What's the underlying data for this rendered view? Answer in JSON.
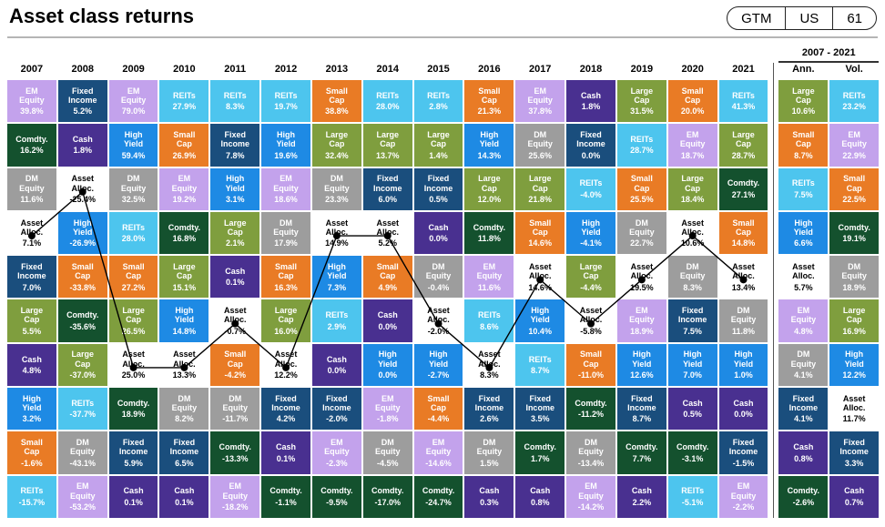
{
  "page": {
    "title": "Asset class returns"
  },
  "gtm_pill": {
    "items": [
      "GTM",
      "US",
      "61"
    ]
  },
  "asset_styles": {
    "Large Cap": {
      "bg": "#7f9e3e",
      "fg": "#ffffff"
    },
    "Small Cap": {
      "bg": "#e97b25",
      "fg": "#ffffff"
    },
    "EM Equity": {
      "bg": "#c3a2ec",
      "fg": "#ffffff"
    },
    "DM Equity": {
      "bg": "#9d9d9d",
      "fg": "#ffffff"
    },
    "REITs": {
      "bg": "#4dc5ee",
      "fg": "#ffffff"
    },
    "Fixed Income": {
      "bg": "#1a4e7d",
      "fg": "#ffffff"
    },
    "High Yield": {
      "bg": "#1e8ae4",
      "fg": "#ffffff"
    },
    "Cash": {
      "bg": "#493090",
      "fg": "#ffffff"
    },
    "Comdty.": {
      "bg": "#14512e",
      "fg": "#ffffff"
    },
    "Asset Alloc.": {
      "bg": "#ffffff",
      "fg": "#000000"
    }
  },
  "line_style": {
    "color": "#000000",
    "dot_radius": 4
  },
  "chart_data": {
    "type": "heatmap",
    "title": "Asset class returns",
    "period_label": "2007 - 2021",
    "columns": [
      "2007",
      "2008",
      "2009",
      "2010",
      "2011",
      "2012",
      "2013",
      "2014",
      "2015",
      "2016",
      "2017",
      "2018",
      "2019",
      "2020",
      "2021",
      "Ann.",
      "Vol."
    ],
    "asset_alloc_line_rows": [
      3,
      2,
      6,
      6,
      5,
      6,
      3,
      3,
      5,
      6,
      4,
      5,
      4,
      3,
      4
    ],
    "rows": [
      [
        {
          "asset": "EM Equity",
          "return": "39.8%"
        },
        {
          "asset": "Fixed Income",
          "return": "5.2%"
        },
        {
          "asset": "EM Equity",
          "return": "79.0%"
        },
        {
          "asset": "REITs",
          "return": "27.9%"
        },
        {
          "asset": "REITs",
          "return": "8.3%"
        },
        {
          "asset": "REITs",
          "return": "19.7%"
        },
        {
          "asset": "Small Cap",
          "return": "38.8%"
        },
        {
          "asset": "REITs",
          "return": "28.0%"
        },
        {
          "asset": "REITs",
          "return": "2.8%"
        },
        {
          "asset": "Small Cap",
          "return": "21.3%"
        },
        {
          "asset": "EM Equity",
          "return": "37.8%"
        },
        {
          "asset": "Cash",
          "return": "1.8%"
        },
        {
          "asset": "Large Cap",
          "return": "31.5%"
        },
        {
          "asset": "Small Cap",
          "return": "20.0%"
        },
        {
          "asset": "REITs",
          "return": "41.3%"
        },
        {
          "asset": "Large Cap",
          "return": "10.6%"
        },
        {
          "asset": "REITs",
          "return": "23.2%"
        }
      ],
      [
        {
          "asset": "Comdty.",
          "return": "16.2%"
        },
        {
          "asset": "Cash",
          "return": "1.8%"
        },
        {
          "asset": "High Yield",
          "return": "59.4%"
        },
        {
          "asset": "Small Cap",
          "return": "26.9%"
        },
        {
          "asset": "Fixed Income",
          "return": "7.8%"
        },
        {
          "asset": "High Yield",
          "return": "19.6%"
        },
        {
          "asset": "Large Cap",
          "return": "32.4%"
        },
        {
          "asset": "Large Cap",
          "return": "13.7%"
        },
        {
          "asset": "Large Cap",
          "return": "1.4%"
        },
        {
          "asset": "High Yield",
          "return": "14.3%"
        },
        {
          "asset": "DM Equity",
          "return": "25.6%"
        },
        {
          "asset": "Fixed Income",
          "return": "0.0%"
        },
        {
          "asset": "REITs",
          "return": "28.7%"
        },
        {
          "asset": "EM Equity",
          "return": "18.7%"
        },
        {
          "asset": "Large Cap",
          "return": "28.7%"
        },
        {
          "asset": "Small Cap",
          "return": "8.7%"
        },
        {
          "asset": "EM Equity",
          "return": "22.9%"
        }
      ],
      [
        {
          "asset": "DM Equity",
          "return": "11.6%"
        },
        {
          "asset": "Asset Alloc.",
          "return": "-25.4%"
        },
        {
          "asset": "DM Equity",
          "return": "32.5%"
        },
        {
          "asset": "EM Equity",
          "return": "19.2%"
        },
        {
          "asset": "High Yield",
          "return": "3.1%"
        },
        {
          "asset": "EM Equity",
          "return": "18.6%"
        },
        {
          "asset": "DM Equity",
          "return": "23.3%"
        },
        {
          "asset": "Fixed Income",
          "return": "6.0%"
        },
        {
          "asset": "Fixed Income",
          "return": "0.5%"
        },
        {
          "asset": "Large Cap",
          "return": "12.0%"
        },
        {
          "asset": "Large Cap",
          "return": "21.8%"
        },
        {
          "asset": "REITs",
          "return": "-4.0%"
        },
        {
          "asset": "Small Cap",
          "return": "25.5%"
        },
        {
          "asset": "Large Cap",
          "return": "18.4%"
        },
        {
          "asset": "Comdty.",
          "return": "27.1%"
        },
        {
          "asset": "REITs",
          "return": "7.5%"
        },
        {
          "asset": "Small Cap",
          "return": "22.5%"
        }
      ],
      [
        {
          "asset": "Asset Alloc.",
          "return": "7.1%"
        },
        {
          "asset": "High Yield",
          "return": "-26.9%"
        },
        {
          "asset": "REITs",
          "return": "28.0%"
        },
        {
          "asset": "Comdty.",
          "return": "16.8%"
        },
        {
          "asset": "Large Cap",
          "return": "2.1%"
        },
        {
          "asset": "DM Equity",
          "return": "17.9%"
        },
        {
          "asset": "Asset Alloc.",
          "return": "14.9%"
        },
        {
          "asset": "Asset Alloc.",
          "return": "5.2%"
        },
        {
          "asset": "Cash",
          "return": "0.0%"
        },
        {
          "asset": "Comdty.",
          "return": "11.8%"
        },
        {
          "asset": "Small Cap",
          "return": "14.6%"
        },
        {
          "asset": "High Yield",
          "return": "-4.1%"
        },
        {
          "asset": "DM Equity",
          "return": "22.7%"
        },
        {
          "asset": "Asset Alloc.",
          "return": "10.6%"
        },
        {
          "asset": "Small Cap",
          "return": "14.8%"
        },
        {
          "asset": "High Yield",
          "return": "6.6%"
        },
        {
          "asset": "Comdty.",
          "return": "19.1%"
        }
      ],
      [
        {
          "asset": "Fixed Income",
          "return": "7.0%"
        },
        {
          "asset": "Small Cap",
          "return": "-33.8%"
        },
        {
          "asset": "Small Cap",
          "return": "27.2%"
        },
        {
          "asset": "Large Cap",
          "return": "15.1%"
        },
        {
          "asset": "Cash",
          "return": "0.1%"
        },
        {
          "asset": "Small Cap",
          "return": "16.3%"
        },
        {
          "asset": "High Yield",
          "return": "7.3%"
        },
        {
          "asset": "Small Cap",
          "return": "4.9%"
        },
        {
          "asset": "DM Equity",
          "return": "-0.4%"
        },
        {
          "asset": "EM Equity",
          "return": "11.6%"
        },
        {
          "asset": "Asset Alloc.",
          "return": "14.6%"
        },
        {
          "asset": "Large Cap",
          "return": "-4.4%"
        },
        {
          "asset": "Asset Alloc.",
          "return": "19.5%"
        },
        {
          "asset": "DM Equity",
          "return": "8.3%"
        },
        {
          "asset": "Asset Alloc.",
          "return": "13.4%"
        },
        {
          "asset": "Asset Alloc.",
          "return": "5.7%"
        },
        {
          "asset": "DM Equity",
          "return": "18.9%"
        }
      ],
      [
        {
          "asset": "Large Cap",
          "return": "5.5%"
        },
        {
          "asset": "Comdty.",
          "return": "-35.6%"
        },
        {
          "asset": "Large Cap",
          "return": "26.5%"
        },
        {
          "asset": "High Yield",
          "return": "14.8%"
        },
        {
          "asset": "Asset Alloc.",
          "return": "-0.7%"
        },
        {
          "asset": "Large Cap",
          "return": "16.0%"
        },
        {
          "asset": "REITs",
          "return": "2.9%"
        },
        {
          "asset": "Cash",
          "return": "0.0%"
        },
        {
          "asset": "Asset Alloc.",
          "return": "-2.0%"
        },
        {
          "asset": "REITs",
          "return": "8.6%"
        },
        {
          "asset": "High Yield",
          "return": "10.4%"
        },
        {
          "asset": "Asset Alloc.",
          "return": "-5.8%"
        },
        {
          "asset": "EM Equity",
          "return": "18.9%"
        },
        {
          "asset": "Fixed Income",
          "return": "7.5%"
        },
        {
          "asset": "DM Equity",
          "return": "11.8%"
        },
        {
          "asset": "EM Equity",
          "return": "4.8%"
        },
        {
          "asset": "Large Cap",
          "return": "16.9%"
        }
      ],
      [
        {
          "asset": "Cash",
          "return": "4.8%"
        },
        {
          "asset": "Large Cap",
          "return": "-37.0%"
        },
        {
          "asset": "Asset Alloc.",
          "return": "25.0%"
        },
        {
          "asset": "Asset Alloc.",
          "return": "13.3%"
        },
        {
          "asset": "Small Cap",
          "return": "-4.2%"
        },
        {
          "asset": "Asset Alloc.",
          "return": "12.2%"
        },
        {
          "asset": "Cash",
          "return": "0.0%"
        },
        {
          "asset": "High Yield",
          "return": "0.0%"
        },
        {
          "asset": "High Yield",
          "return": "-2.7%"
        },
        {
          "asset": "Asset Alloc.",
          "return": "8.3%"
        },
        {
          "asset": "REITs",
          "return": "8.7%"
        },
        {
          "asset": "Small Cap",
          "return": "-11.0%"
        },
        {
          "asset": "High Yield",
          "return": "12.6%"
        },
        {
          "asset": "High Yield",
          "return": "7.0%"
        },
        {
          "asset": "High Yield",
          "return": "1.0%"
        },
        {
          "asset": "DM Equity",
          "return": "4.1%"
        },
        {
          "asset": "High Yield",
          "return": "12.2%"
        }
      ],
      [
        {
          "asset": "High Yield",
          "return": "3.2%"
        },
        {
          "asset": "REITs",
          "return": "-37.7%"
        },
        {
          "asset": "Comdty.",
          "return": "18.9%"
        },
        {
          "asset": "DM Equity",
          "return": "8.2%"
        },
        {
          "asset": "DM Equity",
          "return": "-11.7%"
        },
        {
          "asset": "Fixed Income",
          "return": "4.2%"
        },
        {
          "asset": "Fixed Income",
          "return": "-2.0%"
        },
        {
          "asset": "EM Equity",
          "return": "-1.8%"
        },
        {
          "asset": "Small Cap",
          "return": "-4.4%"
        },
        {
          "asset": "Fixed Income",
          "return": "2.6%"
        },
        {
          "asset": "Fixed Income",
          "return": "3.5%"
        },
        {
          "asset": "Comdty.",
          "return": "-11.2%"
        },
        {
          "asset": "Fixed Income",
          "return": "8.7%"
        },
        {
          "asset": "Cash",
          "return": "0.5%"
        },
        {
          "asset": "Cash",
          "return": "0.0%"
        },
        {
          "asset": "Fixed Income",
          "return": "4.1%"
        },
        {
          "asset": "Asset Alloc.",
          "return": "11.7%"
        }
      ],
      [
        {
          "asset": "Small Cap",
          "return": "-1.6%"
        },
        {
          "asset": "DM Equity",
          "return": "-43.1%"
        },
        {
          "asset": "Fixed Income",
          "return": "5.9%"
        },
        {
          "asset": "Fixed Income",
          "return": "6.5%"
        },
        {
          "asset": "Comdty.",
          "return": "-13.3%"
        },
        {
          "asset": "Cash",
          "return": "0.1%"
        },
        {
          "asset": "EM Equity",
          "return": "-2.3%"
        },
        {
          "asset": "DM Equity",
          "return": "-4.5%"
        },
        {
          "asset": "EM Equity",
          "return": "-14.6%"
        },
        {
          "asset": "DM Equity",
          "return": "1.5%"
        },
        {
          "asset": "Comdty.",
          "return": "1.7%"
        },
        {
          "asset": "DM Equity",
          "return": "-13.4%"
        },
        {
          "asset": "Comdty.",
          "return": "7.7%"
        },
        {
          "asset": "Comdty.",
          "return": "-3.1%"
        },
        {
          "asset": "Fixed Income",
          "return": "-1.5%"
        },
        {
          "asset": "Cash",
          "return": "0.8%"
        },
        {
          "asset": "Fixed Income",
          "return": "3.3%"
        }
      ],
      [
        {
          "asset": "REITs",
          "return": "-15.7%"
        },
        {
          "asset": "EM Equity",
          "return": "-53.2%"
        },
        {
          "asset": "Cash",
          "return": "0.1%"
        },
        {
          "asset": "Cash",
          "return": "0.1%"
        },
        {
          "asset": "EM Equity",
          "return": "-18.2%"
        },
        {
          "asset": "Comdty.",
          "return": "-1.1%"
        },
        {
          "asset": "Comdty.",
          "return": "-9.5%"
        },
        {
          "asset": "Comdty.",
          "return": "-17.0%"
        },
        {
          "asset": "Comdty.",
          "return": "-24.7%"
        },
        {
          "asset": "Cash",
          "return": "0.3%"
        },
        {
          "asset": "Cash",
          "return": "0.8%"
        },
        {
          "asset": "EM Equity",
          "return": "-14.2%"
        },
        {
          "asset": "Cash",
          "return": "2.2%"
        },
        {
          "asset": "REITs",
          "return": "-5.1%"
        },
        {
          "asset": "EM Equity",
          "return": "-2.2%"
        },
        {
          "asset": "Comdty.",
          "return": "-2.6%"
        },
        {
          "asset": "Cash",
          "return": "0.7%"
        }
      ]
    ]
  }
}
